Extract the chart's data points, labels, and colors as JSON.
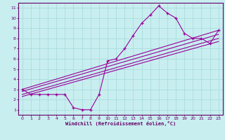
{
  "xlabel": "Windchill (Refroidissement éolien,°C)",
  "bg_color": "#c8eef0",
  "line_color": "#990099",
  "grid_color": "#aadddd",
  "axis_color": "#660066",
  "tick_color": "#660066",
  "xlim": [
    -0.5,
    23.5
  ],
  "ylim": [
    0.5,
    11.5
  ],
  "xticks": [
    0,
    1,
    2,
    3,
    4,
    5,
    6,
    7,
    8,
    9,
    10,
    11,
    12,
    13,
    14,
    15,
    16,
    17,
    18,
    19,
    20,
    21,
    22,
    23
  ],
  "yticks": [
    1,
    2,
    3,
    4,
    5,
    6,
    7,
    8,
    9,
    10,
    11
  ],
  "series": [
    [
      0,
      3.0
    ],
    [
      1,
      2.5
    ],
    [
      2,
      2.5
    ],
    [
      3,
      2.5
    ],
    [
      4,
      2.5
    ],
    [
      5,
      2.5
    ],
    [
      6,
      1.2
    ],
    [
      7,
      1.0
    ],
    [
      8,
      1.0
    ],
    [
      9,
      2.5
    ],
    [
      10,
      5.8
    ],
    [
      11,
      6.0
    ],
    [
      12,
      7.0
    ],
    [
      13,
      8.3
    ],
    [
      14,
      9.5
    ],
    [
      15,
      10.3
    ],
    [
      16,
      11.2
    ],
    [
      17,
      10.5
    ],
    [
      18,
      10.0
    ],
    [
      19,
      8.5
    ],
    [
      20,
      8.0
    ],
    [
      21,
      8.0
    ],
    [
      22,
      7.5
    ],
    [
      23,
      8.8
    ]
  ],
  "trend_lines": [
    [
      [
        0,
        3.0
      ],
      [
        23,
        8.8
      ]
    ],
    [
      [
        0,
        2.8
      ],
      [
        23,
        8.4
      ]
    ],
    [
      [
        0,
        2.5
      ],
      [
        23,
        8.0
      ]
    ],
    [
      [
        0,
        2.3
      ],
      [
        23,
        7.7
      ]
    ]
  ]
}
